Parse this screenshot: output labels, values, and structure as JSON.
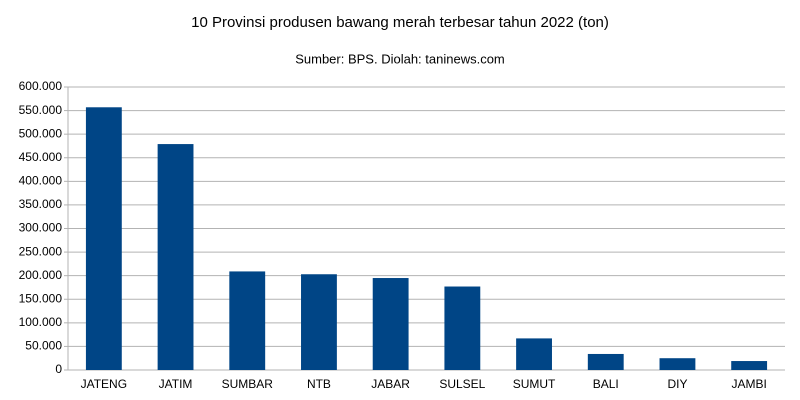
{
  "chart_data": {
    "type": "bar",
    "title": "10 Provinsi produsen bawang merah terbesar tahun 2022 (ton)",
    "subtitle": "Sumber: BPS. Diolah: taninews.com",
    "categories": [
      "JATENG",
      "JATIM",
      "SUMBAR",
      "NTB",
      "JABAR",
      "SULSEL",
      "SUMUT",
      "BALI",
      "DIY",
      "JAMBI"
    ],
    "values": [
      557000,
      479000,
      209000,
      203000,
      195000,
      177000,
      67000,
      34000,
      25000,
      19000
    ],
    "color": "#004586",
    "ylim": [
      0,
      600000
    ],
    "yticks": [
      0,
      {
        "value": 50000,
        "label": "50.000"
      },
      {
        "value": 100000,
        "label": "100.000"
      },
      {
        "value": 150000,
        "label": "150.000"
      },
      {
        "value": 200000,
        "label": "200.000"
      },
      {
        "value": 250000,
        "label": "250.000"
      },
      {
        "value": 300000,
        "label": "300.000"
      },
      {
        "value": 350000,
        "label": "350.000"
      },
      {
        "value": 400000,
        "label": "400.000"
      },
      {
        "value": 450000,
        "label": "450.000"
      },
      {
        "value": 500000,
        "label": "500.000"
      },
      {
        "value": 550000,
        "label": "550.000"
      },
      {
        "value": 600000,
        "label": "600.000"
      }
    ],
    "grid": true
  }
}
